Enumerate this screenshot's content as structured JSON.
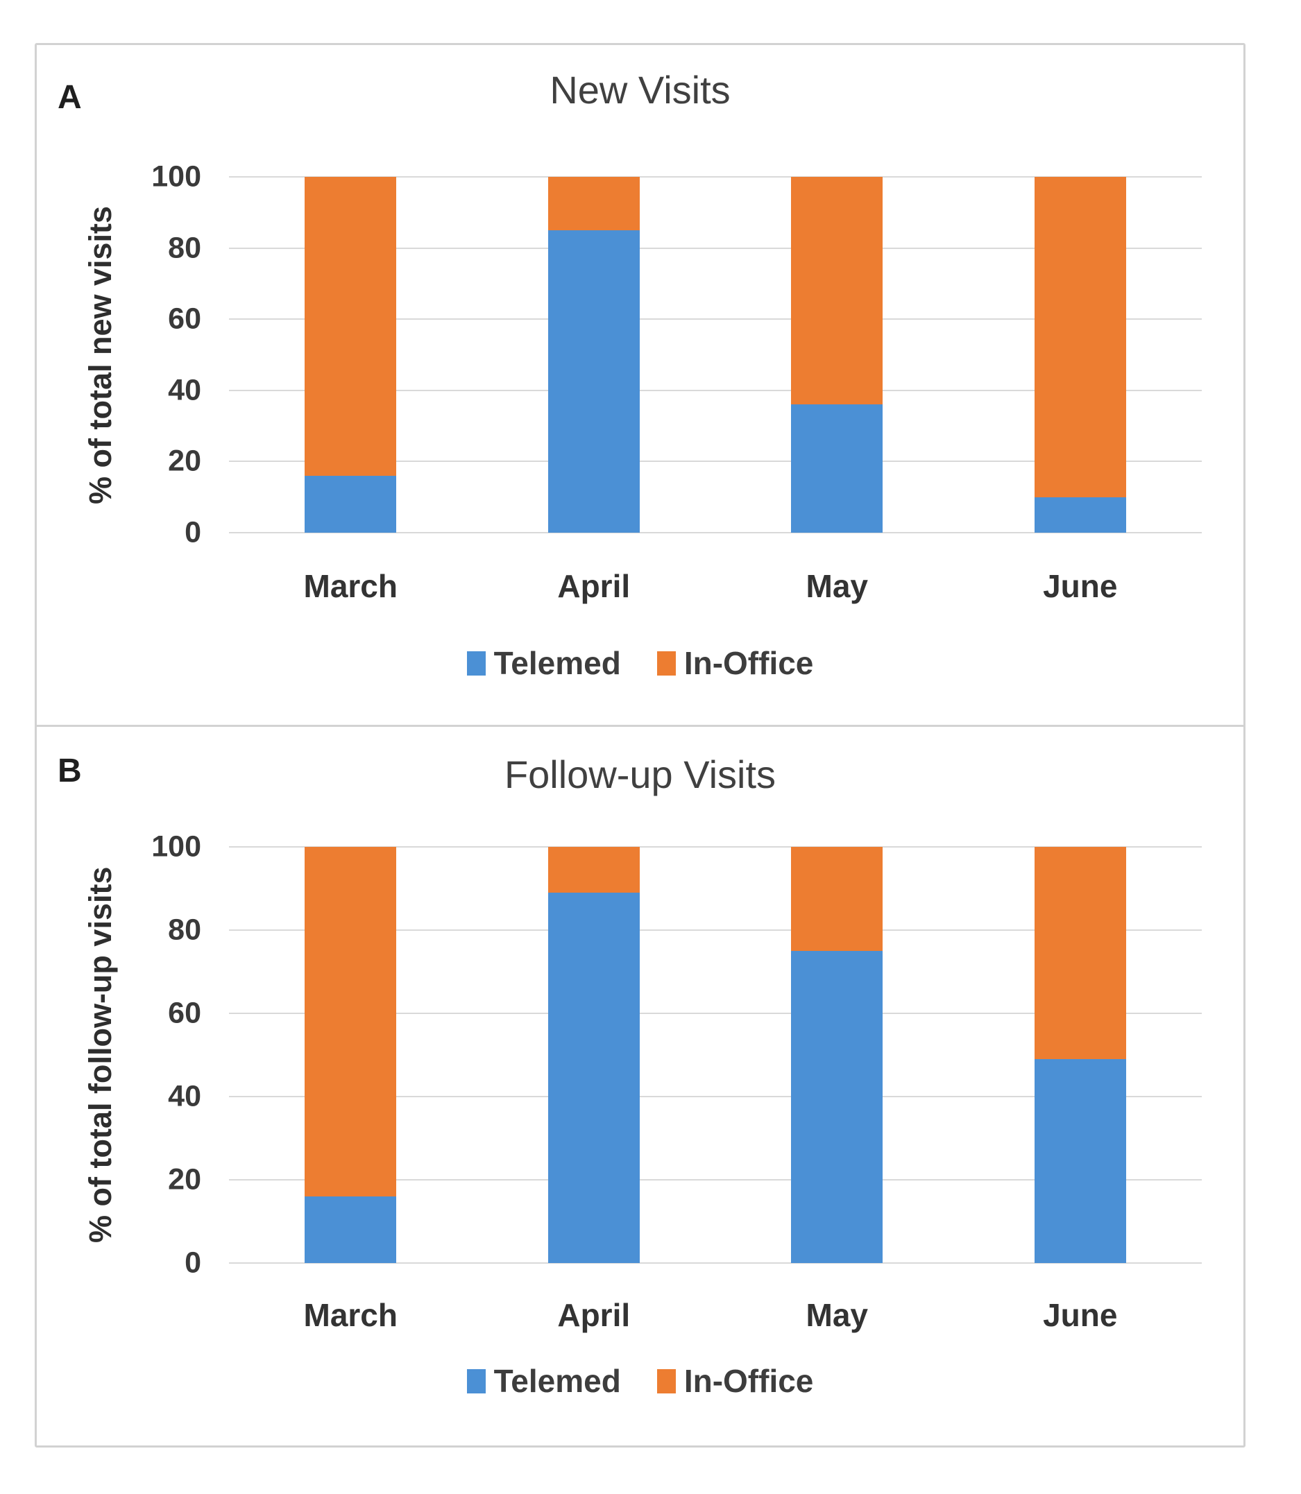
{
  "figure": {
    "description": "Two-panel stacked percentage bar chart figure comparing telemedicine and in-office visit shares by month"
  },
  "chart_data": [
    {
      "type": "bar",
      "subtype": "stacked-100-percent",
      "panel_label": "A",
      "title": "New Visits",
      "ylabel": "% of total new visits",
      "xlabel": "",
      "categories": [
        "March",
        "April",
        "May",
        "June"
      ],
      "series": [
        {
          "name": "Telemed",
          "color": "#4B90D5",
          "values": [
            16,
            85,
            36,
            10
          ]
        },
        {
          "name": "In-Office",
          "color": "#ED7D31",
          "values": [
            84,
            15,
            64,
            90
          ]
        }
      ],
      "ylim": [
        0,
        100
      ],
      "ytick_step": 20,
      "yticks": [
        0,
        20,
        40,
        60,
        80,
        100
      ],
      "grid": true,
      "gridline_color": "#d9d9d9",
      "legend_position": "bottom"
    },
    {
      "type": "bar",
      "subtype": "stacked-100-percent",
      "panel_label": "B",
      "title": "Follow-up Visits",
      "ylabel": "% of total follow-up visits",
      "xlabel": "",
      "categories": [
        "March",
        "April",
        "May",
        "June"
      ],
      "series": [
        {
          "name": "Telemed",
          "color": "#4B90D5",
          "values": [
            16,
            89,
            75,
            49
          ]
        },
        {
          "name": "In-Office",
          "color": "#ED7D31",
          "values": [
            84,
            11,
            25,
            51
          ]
        }
      ],
      "ylim": [
        0,
        100
      ],
      "ytick_step": 20,
      "yticks": [
        0,
        20,
        40,
        60,
        80,
        100
      ],
      "grid": true,
      "gridline_color": "#d9d9d9",
      "legend_position": "bottom"
    }
  ]
}
